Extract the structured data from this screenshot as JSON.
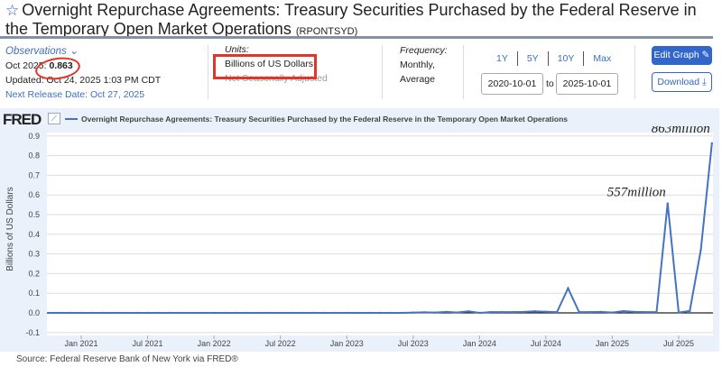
{
  "header": {
    "title": "Overnight Repurchase Agreements: Treasury Securities Purchased by the Federal Reserve in the Temporary Open Market Operations",
    "series_id": "(RPONTSYD)"
  },
  "observations": {
    "label": "Observations",
    "period": "Oct 2025:",
    "value": "0.863",
    "updated": "Updated: Oct 24, 2025 1:03 PM CDT",
    "next_release": "Next Release Date: Oct 27, 2025"
  },
  "units": {
    "label": "Units:",
    "line1": "Billions of US Dollars,",
    "line2": "Not Seasonally Adjusted"
  },
  "frequency": {
    "label": "Frequency:",
    "line1": "Monthly,",
    "line2": "Average"
  },
  "range": {
    "buttons": [
      "1Y",
      "5Y",
      "10Y",
      "Max"
    ],
    "start": "2020-10-01",
    "to": "to",
    "end": "2025-10-01"
  },
  "actions": {
    "edit": "Edit Graph",
    "download": "Download"
  },
  "brand": "FRED",
  "source": "Source: Federal Reserve Bank of New York via FRED®",
  "chart_data": {
    "type": "line",
    "title": "Overnight Repurchase Agreements: Treasury Securities Purchased by the Federal Reserve in the Temporary Open Market Operations",
    "ylabel": "Billions of US Dollars",
    "xlabel": "",
    "ylim": [
      -0.1,
      0.9
    ],
    "yticks": [
      "0.9",
      "0.8",
      "0.7",
      "0.6",
      "0.5",
      "0.4",
      "0.3",
      "0.2",
      "0.1",
      "0.0",
      "-0.1"
    ],
    "xticks": [
      "Jan 2021",
      "Jul 2021",
      "Jan 2022",
      "Jul 2022",
      "Jan 2023",
      "Jul 2023",
      "Jan 2024",
      "Jul 2024",
      "Jan 2025",
      "Jul 2025"
    ],
    "x_start": "2020-10",
    "x_end": "2025-10",
    "color": "#4472c4",
    "values": [
      0,
      0,
      0,
      0,
      0,
      0,
      0,
      0,
      0,
      0,
      0,
      0,
      0,
      0,
      0,
      0,
      0,
      0,
      0,
      0,
      0,
      0,
      0,
      0,
      0,
      0,
      0,
      0,
      0,
      0,
      0,
      0,
      0,
      0.002,
      0.003,
      0.002,
      0.005,
      0.002,
      0.008,
      0,
      0.004,
      0.004,
      0.004,
      0.005,
      0.008,
      0.006,
      0.004,
      0.125,
      0.004,
      0.004,
      0.005,
      0.002,
      0.009,
      0.005,
      0.004,
      0.004,
      0.557,
      0.002,
      0.01,
      0.32,
      0.863
    ],
    "annotations": [
      {
        "text": "557million",
        "value": 0.557
      },
      {
        "text": "863million",
        "value": 0.863
      }
    ]
  }
}
